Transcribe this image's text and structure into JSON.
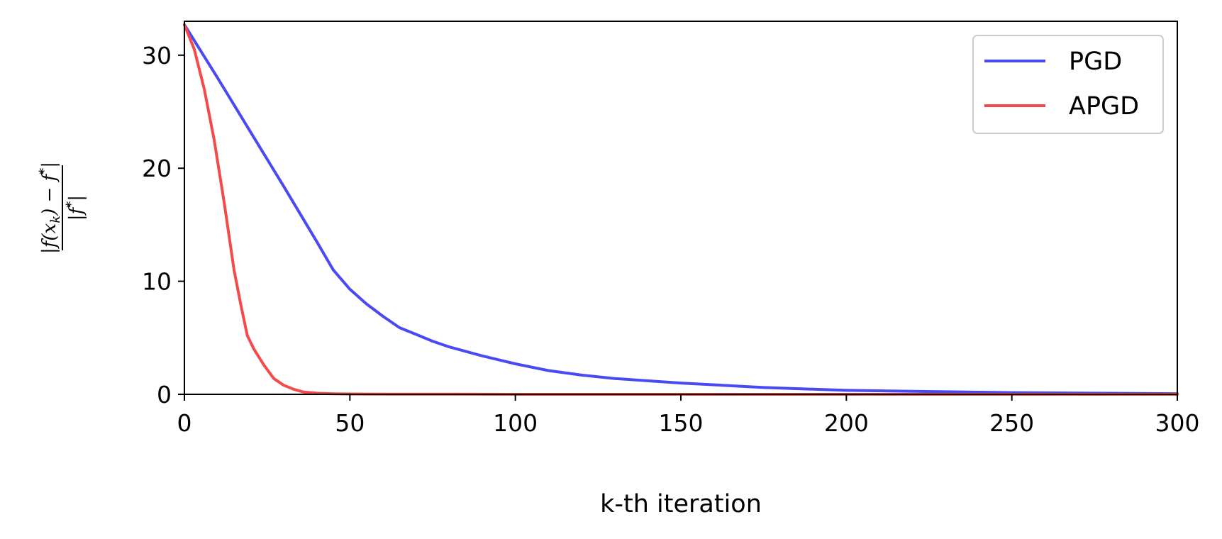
{
  "chart_data": {
    "type": "line",
    "xlabel": "k-th iteration",
    "ylabel": {
      "numerator": "|f(x",
      "numerator_sub": "k",
      "numerator_rest": ") − f",
      "numerator_sup": "*",
      "numerator_end": "|",
      "denominator": "|f",
      "denominator_sup": "*",
      "denominator_end": "|"
    },
    "xlim": [
      0,
      300
    ],
    "ylim": [
      0,
      33
    ],
    "xticks": [
      0,
      50,
      100,
      150,
      200,
      250,
      300
    ],
    "yticks": [
      0,
      10,
      20,
      30
    ],
    "grid": false,
    "legend_position": "top-right",
    "series": [
      {
        "name": "PGD",
        "color": "#4a4af4",
        "x": [
          0,
          10,
          20,
          30,
          40,
          45,
          50,
          55,
          60,
          65,
          70,
          75,
          80,
          90,
          100,
          110,
          120,
          130,
          150,
          175,
          200,
          250,
          300
        ],
        "y": [
          32.7,
          28.0,
          23.2,
          18.4,
          13.5,
          11.0,
          9.3,
          8.0,
          6.9,
          5.9,
          5.3,
          4.7,
          4.2,
          3.4,
          2.7,
          2.1,
          1.7,
          1.4,
          1.0,
          0.6,
          0.35,
          0.15,
          0.05
        ]
      },
      {
        "name": "APGD",
        "color": "#f44a4a",
        "x": [
          0,
          3,
          6,
          9,
          12,
          15,
          17,
          19,
          21,
          24,
          27,
          30,
          33,
          36,
          40,
          45,
          50,
          60,
          80,
          100,
          150,
          200,
          300
        ],
        "y": [
          32.7,
          30.5,
          27.0,
          22.5,
          17.0,
          11.0,
          8.0,
          5.2,
          4.0,
          2.6,
          1.4,
          0.8,
          0.45,
          0.2,
          0.1,
          0.05,
          0.03,
          0.02,
          0.01,
          0.0,
          0.0,
          0.0,
          0.0
        ]
      }
    ]
  }
}
